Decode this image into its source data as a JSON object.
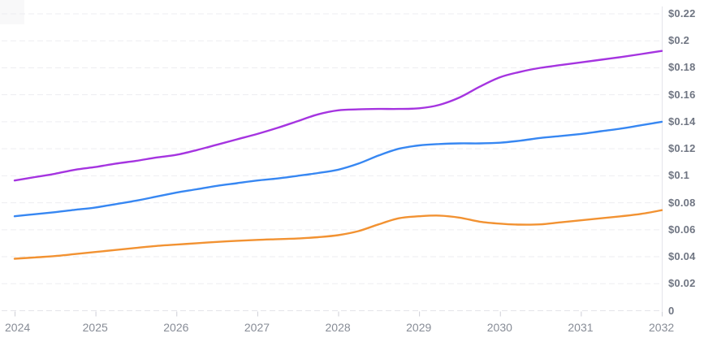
{
  "chart_data": {
    "type": "line",
    "title": "",
    "xlabel": "",
    "ylabel": "",
    "legend": "none",
    "grid": {
      "horizontal": true,
      "style": "dashed"
    },
    "x_axis": {
      "range": [
        2024,
        2032
      ],
      "tick_labels": [
        "2024",
        "2025",
        "2026",
        "2027",
        "2028",
        "2029",
        "2030",
        "2031",
        "2032"
      ]
    },
    "y_axis": {
      "side": "right",
      "range": [
        0,
        0.22
      ],
      "ticks": [
        {
          "value": 0.22,
          "label": "$0.22"
        },
        {
          "value": 0.2,
          "label": "$0.2"
        },
        {
          "value": 0.18,
          "label": "$0.18"
        },
        {
          "value": 0.16,
          "label": "$0.16"
        },
        {
          "value": 0.14,
          "label": "$0.14"
        },
        {
          "value": 0.12,
          "label": "$0.12"
        },
        {
          "value": 0.1,
          "label": "$0.1"
        },
        {
          "value": 0.08,
          "label": "$0.08"
        },
        {
          "value": 0.06,
          "label": "$0.06"
        },
        {
          "value": 0.04,
          "label": "$0.04"
        },
        {
          "value": 0.02,
          "label": "$0.02"
        },
        {
          "value": 0.0,
          "label": "0"
        }
      ]
    },
    "x": [
      2024,
      2024.25,
      2024.5,
      2024.75,
      2025,
      2025.25,
      2025.5,
      2025.75,
      2026,
      2026.25,
      2026.5,
      2026.75,
      2027,
      2027.25,
      2027.5,
      2027.75,
      2028,
      2028.25,
      2028.5,
      2028.75,
      2029,
      2029.25,
      2029.5,
      2029.75,
      2030,
      2030.25,
      2030.5,
      2030.75,
      2031,
      2031.25,
      2031.5,
      2031.75,
      2032
    ],
    "series": [
      {
        "name": "series-purple",
        "color": "#a534e0",
        "values": [
          0.0965,
          0.099,
          0.1015,
          0.1045,
          0.1065,
          0.109,
          0.111,
          0.1135,
          0.1155,
          0.119,
          0.123,
          0.127,
          0.131,
          0.1355,
          0.1405,
          0.1455,
          0.1485,
          0.1492,
          0.1495,
          0.1495,
          0.15,
          0.1525,
          0.158,
          0.166,
          0.173,
          0.177,
          0.18,
          0.182,
          0.184,
          0.186,
          0.188,
          0.1902,
          0.1925
        ]
      },
      {
        "name": "series-blue",
        "color": "#3787f2",
        "values": [
          0.07,
          0.0715,
          0.073,
          0.0748,
          0.0765,
          0.079,
          0.0815,
          0.0845,
          0.0875,
          0.09,
          0.0925,
          0.0945,
          0.0965,
          0.098,
          0.1,
          0.102,
          0.1045,
          0.109,
          0.115,
          0.12,
          0.1225,
          0.1235,
          0.124,
          0.124,
          0.1245,
          0.126,
          0.128,
          0.1295,
          0.131,
          0.133,
          0.135,
          0.1375,
          0.14
        ]
      },
      {
        "name": "series-orange",
        "color": "#f29232",
        "values": [
          0.0385,
          0.0395,
          0.0405,
          0.042,
          0.0435,
          0.045,
          0.0465,
          0.048,
          0.049,
          0.05,
          0.051,
          0.0518,
          0.0525,
          0.053,
          0.0535,
          0.0545,
          0.056,
          0.059,
          0.064,
          0.0685,
          0.07,
          0.0705,
          0.069,
          0.066,
          0.0645,
          0.0638,
          0.064,
          0.0655,
          0.067,
          0.0685,
          0.07,
          0.0718,
          0.0745
        ]
      }
    ]
  },
  "colors": {
    "background": "#ffffff",
    "gridline": "#ededf1",
    "baseline": "#e3e3e9",
    "axis_line": "#e4e4ea",
    "tick_mark": "#cdced6",
    "y_label_text": "#6f7582",
    "x_label_text": "#878c96",
    "corner_artifact": "#f8f8f9"
  }
}
